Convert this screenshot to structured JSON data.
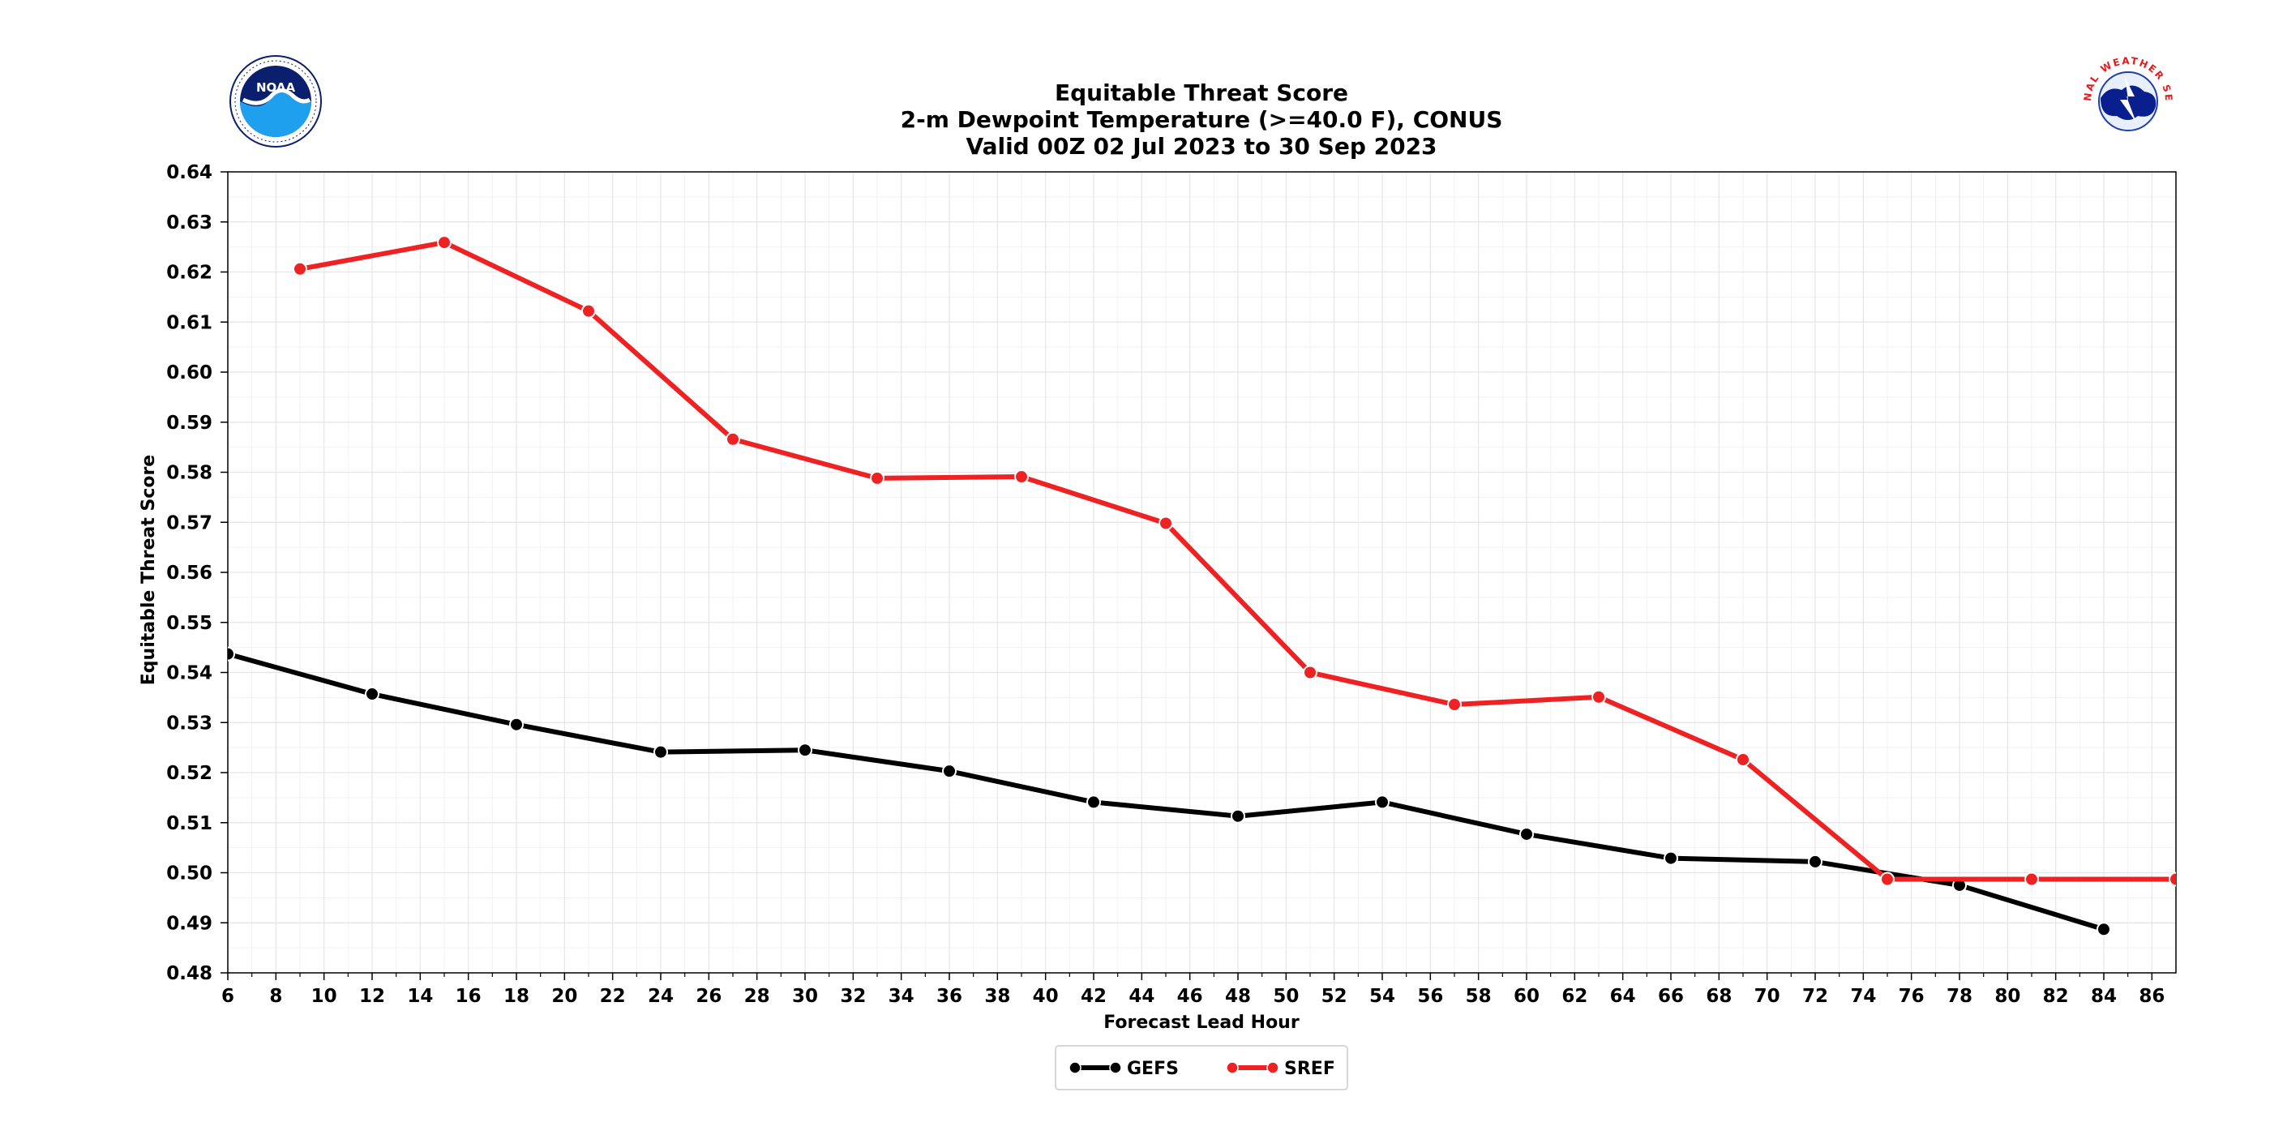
{
  "chart_data": {
    "type": "line",
    "title_lines": [
      "Equitable Threat Score",
      "2-m Dewpoint Temperature (>=40.0 F), CONUS",
      "Valid 00Z 02 Jul 2023 to 30 Sep 2023"
    ],
    "xlabel": "Forecast Lead Hour",
    "ylabel": "Equitable Threat Score",
    "xlim": [
      6,
      87
    ],
    "ylim": [
      0.48,
      0.64
    ],
    "xticks": [
      "6",
      "8",
      "10",
      "12",
      "14",
      "16",
      "18",
      "20",
      "22",
      "24",
      "26",
      "28",
      "30",
      "32",
      "34",
      "36",
      "38",
      "40",
      "42",
      "44",
      "46",
      "48",
      "50",
      "52",
      "54",
      "56",
      "58",
      "60",
      "62",
      "64",
      "66",
      "68",
      "70",
      "72",
      "74",
      "76",
      "78",
      "80",
      "82",
      "84",
      "86"
    ],
    "yticks": [
      "0.48",
      "0.49",
      "0.50",
      "0.51",
      "0.52",
      "0.53",
      "0.54",
      "0.55",
      "0.56",
      "0.57",
      "0.58",
      "0.59",
      "0.60",
      "0.61",
      "0.62",
      "0.63",
      "0.64"
    ],
    "grid": true,
    "legend_position": "bottom-center",
    "series": [
      {
        "name": "GEFS",
        "color": "#000000",
        "x": [
          6,
          12,
          18,
          24,
          30,
          36,
          42,
          48,
          54,
          60,
          66,
          72,
          78,
          84
        ],
        "y": [
          0.5437,
          0.5357,
          0.5296,
          0.5241,
          0.5245,
          0.5203,
          0.5141,
          0.5113,
          0.5141,
          0.5077,
          0.5029,
          0.5022,
          0.4975,
          0.4887
        ]
      },
      {
        "name": "SREF",
        "color": "#ee2222",
        "x": [
          9,
          15,
          21,
          27,
          33,
          39,
          45,
          51,
          57,
          63,
          69,
          75,
          81,
          87
        ],
        "y": [
          0.6206,
          0.6259,
          0.6122,
          0.5866,
          0.5788,
          0.5791,
          0.5698,
          0.54,
          0.5336,
          0.5351,
          0.5226,
          0.4987,
          0.4987,
          0.4987
        ]
      }
    ]
  },
  "logos": {
    "left": {
      "name": "NOAA",
      "icon": "noaa-logo-icon",
      "text": "NOAA",
      "colors": [
        "#0a1f6e",
        "#1ea0ef"
      ]
    },
    "right": {
      "name": "National Weather Service",
      "icon": "nws-logo-icon",
      "text": "NATIONAL WEATHER SERVICE",
      "colors": [
        "#e11d1d",
        "#1e3fae"
      ]
    }
  }
}
